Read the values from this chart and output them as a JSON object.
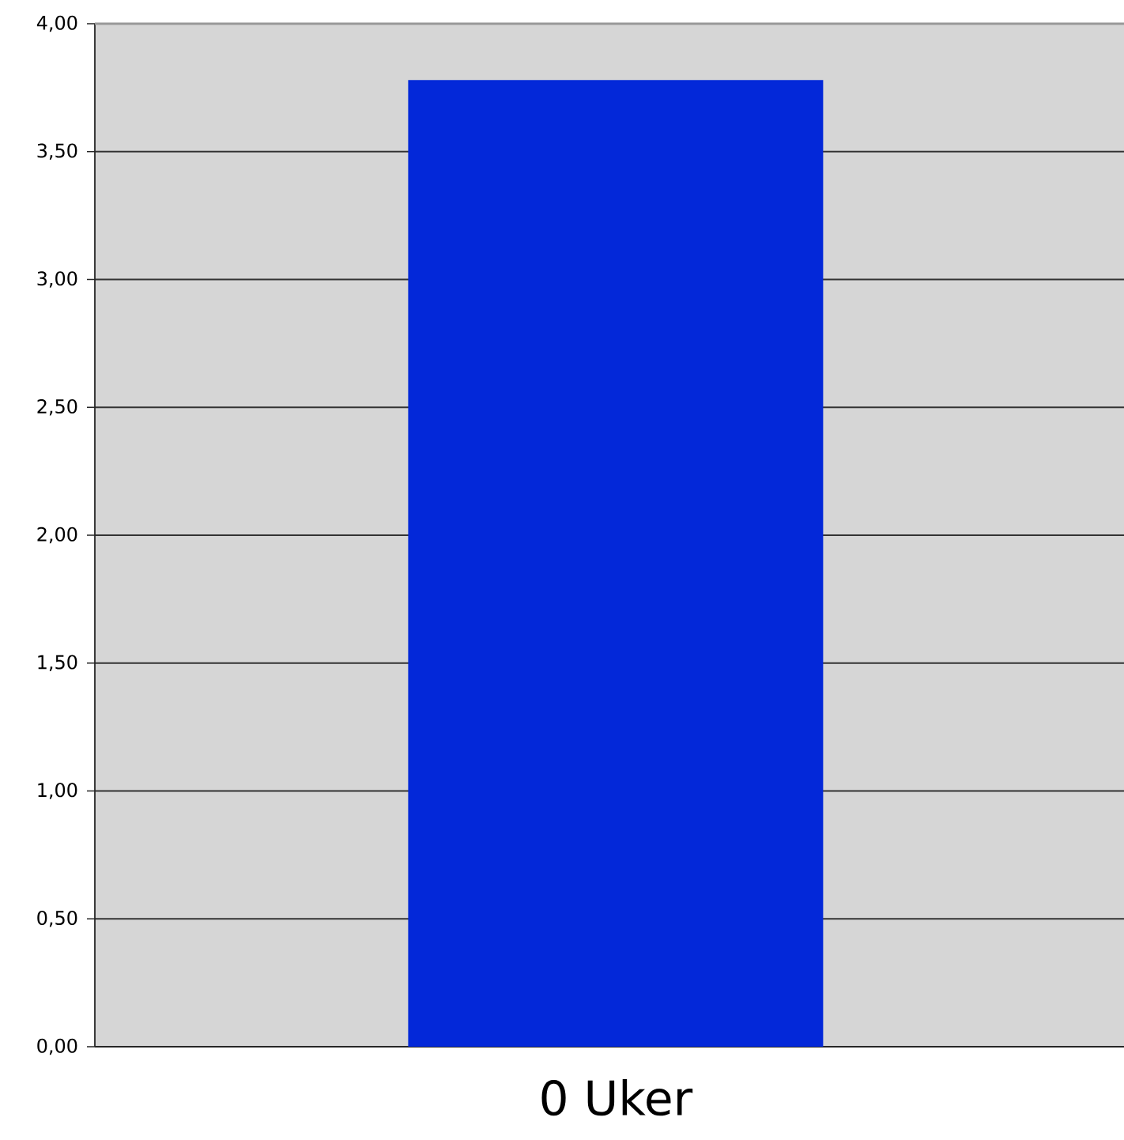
{
  "chart_data": {
    "type": "bar",
    "categories": [
      "0 Uker"
    ],
    "values": [
      3.78
    ],
    "color": "#0328d9",
    "ylim": [
      0,
      4
    ],
    "yticks": [
      {
        "value": 0,
        "label": "0,00"
      },
      {
        "value": 0.5,
        "label": "0,50"
      },
      {
        "value": 1,
        "label": "1,00"
      },
      {
        "value": 1.5,
        "label": "1,50"
      },
      {
        "value": 2,
        "label": "2,00"
      },
      {
        "value": 2.5,
        "label": "2,50"
      },
      {
        "value": 3,
        "label": "3,00"
      },
      {
        "value": 3.5,
        "label": "3,50"
      },
      {
        "value": 4,
        "label": "4,00"
      }
    ],
    "grid": "y"
  }
}
